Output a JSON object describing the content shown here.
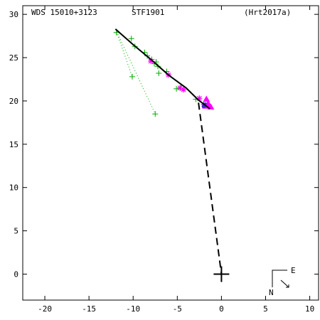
{
  "header": {
    "wds_id": "WDS 15010+3123",
    "discoverer": "STF1901",
    "reference": "(Hrt2017a)"
  },
  "compass": {
    "east_label": "E",
    "north_label": "N"
  },
  "colors": {
    "axis": "#000000",
    "orbit": "#000000",
    "older_obs": "#00aa00",
    "recent_obs": "#ff00ff",
    "speckle_obs": "#3333cc",
    "residual": "#cc0000"
  },
  "chart_data": {
    "type": "scatter",
    "title": "",
    "xlabel": "",
    "ylabel": "",
    "xlim": [
      -22.5,
      11
    ],
    "ylim": [
      -3,
      31
    ],
    "x_ticks": [
      -20,
      -15,
      -10,
      -5,
      0,
      5,
      10
    ],
    "y_ticks": [
      0,
      5,
      10,
      15,
      20,
      25,
      30
    ],
    "x_tick_labels": [
      "-20",
      "-15",
      "-10",
      "-5",
      "0",
      "5",
      "10"
    ],
    "y_tick_labels": [
      "0",
      "5",
      "10",
      "15",
      "20",
      "25",
      "30"
    ],
    "grid": false,
    "primary_star": [
      0,
      0
    ],
    "orbit_arc": [
      [
        -12.0,
        28.3
      ],
      [
        -10.0,
        26.5
      ],
      [
        -8.0,
        24.8
      ],
      [
        -6.0,
        23.0
      ],
      [
        -4.0,
        21.5
      ],
      [
        -2.6,
        20.1
      ],
      [
        -1.7,
        19.4
      ],
      [
        -1.3,
        19.1
      ]
    ],
    "predicted_line": [
      [
        -2.6,
        19.8
      ],
      [
        0.0,
        0.0
      ]
    ],
    "series": [
      {
        "marker": "plus",
        "points": [
          [
            -11.9,
            27.9
          ],
          [
            -10.2,
            27.2
          ],
          [
            -9.8,
            26.3
          ],
          [
            -8.7,
            25.6
          ],
          [
            -8.4,
            25.2
          ],
          [
            -7.9,
            24.8
          ],
          [
            -7.6,
            24.3
          ],
          [
            -7.4,
            24.5
          ],
          [
            -7.2,
            24.0
          ],
          [
            -7.1,
            23.2
          ],
          [
            -6.2,
            23.4
          ],
          [
            -5.1,
            21.4
          ],
          [
            -4.6,
            21.5
          ],
          [
            -10.1,
            22.8
          ],
          [
            -7.5,
            18.5
          ],
          [
            -2.9,
            20.2
          ]
        ]
      },
      {
        "marker": "asterisk",
        "points": [
          [
            -8.0,
            24.6
          ],
          [
            -6.0,
            23.0
          ],
          [
            -4.7,
            21.5
          ],
          [
            -4.3,
            21.3
          ],
          [
            -2.5,
            20.3
          ],
          [
            -2.0,
            19.6
          ]
        ]
      },
      {
        "marker": "triangle",
        "points": [
          [
            -1.7,
            20.2
          ],
          [
            -1.5,
            19.7
          ],
          [
            -1.4,
            19.5
          ],
          [
            -1.2,
            19.3
          ],
          [
            -1.8,
            19.4
          ]
        ]
      },
      {
        "marker": "square",
        "points": [
          [
            -1.9,
            19.6
          ],
          [
            -2.0,
            19.4
          ]
        ]
      },
      {
        "marker": "dotted-residual",
        "points": [
          [
            -12.0,
            28.3
          ],
          [
            -10.1,
            22.8
          ],
          [
            -12.0,
            28.3
          ],
          [
            -7.5,
            18.5
          ]
        ]
      }
    ]
  }
}
